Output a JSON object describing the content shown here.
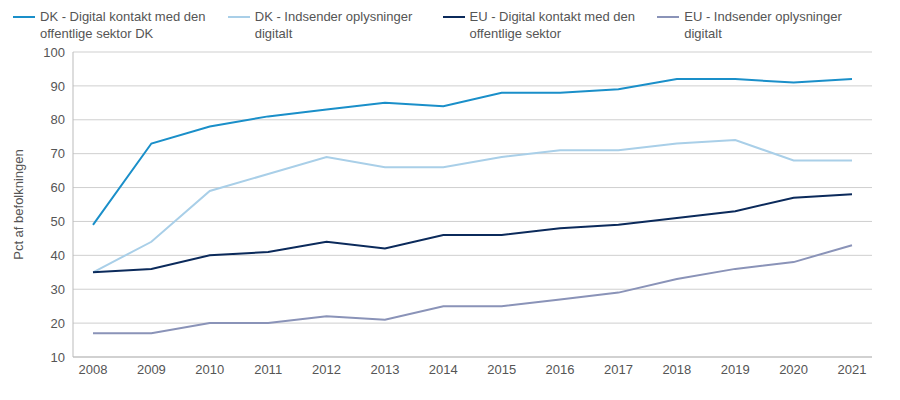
{
  "chart_data": {
    "type": "line",
    "y_label": "Pct af befolkningen",
    "categories": [
      "2008",
      "2009",
      "2010",
      "2011",
      "2012",
      "2013",
      "2014",
      "2015",
      "2016",
      "2017",
      "2018",
      "2019",
      "2020",
      "2021"
    ],
    "series": [
      {
        "name": "DK - Digital kontakt med den offentlige sektor DK",
        "color": "#1a8fc9",
        "values": [
          49,
          73,
          78,
          81,
          83,
          85,
          84,
          88,
          88,
          89,
          92,
          92,
          91,
          92
        ]
      },
      {
        "name": "DK - Indsender oplysninger digitalt",
        "color": "#a9cfe8",
        "values": [
          35,
          44,
          59,
          64,
          69,
          66,
          66,
          69,
          71,
          71,
          73,
          74,
          68,
          68
        ]
      },
      {
        "name": "EU - Digital kontakt med den offentlige sektor",
        "color": "#0b2a5b",
        "values": [
          35,
          36,
          40,
          41,
          44,
          42,
          46,
          46,
          48,
          49,
          51,
          53,
          57,
          58
        ]
      },
      {
        "name": "EU - Indsender oplysninger digitalt",
        "color": "#8a93b8",
        "values": [
          17,
          17,
          20,
          20,
          22,
          21,
          25,
          25,
          27,
          29,
          33,
          36,
          38,
          43
        ]
      }
    ],
    "ylim": [
      10,
      100
    ],
    "yticks": [
      10,
      20,
      30,
      40,
      50,
      60,
      70,
      80,
      90,
      100
    ],
    "grid": true,
    "legend": "top"
  }
}
